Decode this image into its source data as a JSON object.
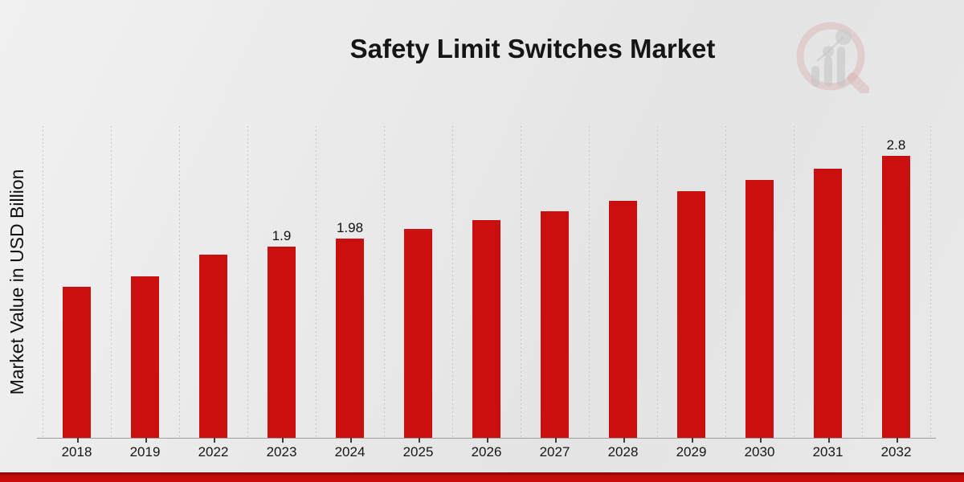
{
  "header": {
    "title": "Safety Limit Switches Market"
  },
  "chart_data": {
    "type": "bar",
    "title": "Safety Limit Switches Market",
    "xlabel": "",
    "ylabel": "Market Value in USD Billion",
    "categories": [
      "2018",
      "2019",
      "2022",
      "2023",
      "2024",
      "2025",
      "2026",
      "2027",
      "2028",
      "2029",
      "2030",
      "2031",
      "2032"
    ],
    "values": [
      1.5,
      1.6,
      1.82,
      1.9,
      1.98,
      2.07,
      2.16,
      2.25,
      2.35,
      2.45,
      2.56,
      2.67,
      2.8
    ],
    "data_labels": {
      "2023": "1.9",
      "2024": "1.98",
      "2032": "2.8"
    },
    "ylim": [
      0,
      3.09
    ],
    "grid": "vertical dashed lines between categories",
    "legend": "none",
    "bar_color": "#c90f0f"
  },
  "branding": {
    "logo_icon": "magnifier-bar-chart-watermark",
    "logo_ring_color": "#d8a8a8",
    "logo_bar_color": "#c2c2c2"
  },
  "footer": {
    "accent_bar_color": "#c90d0d"
  }
}
